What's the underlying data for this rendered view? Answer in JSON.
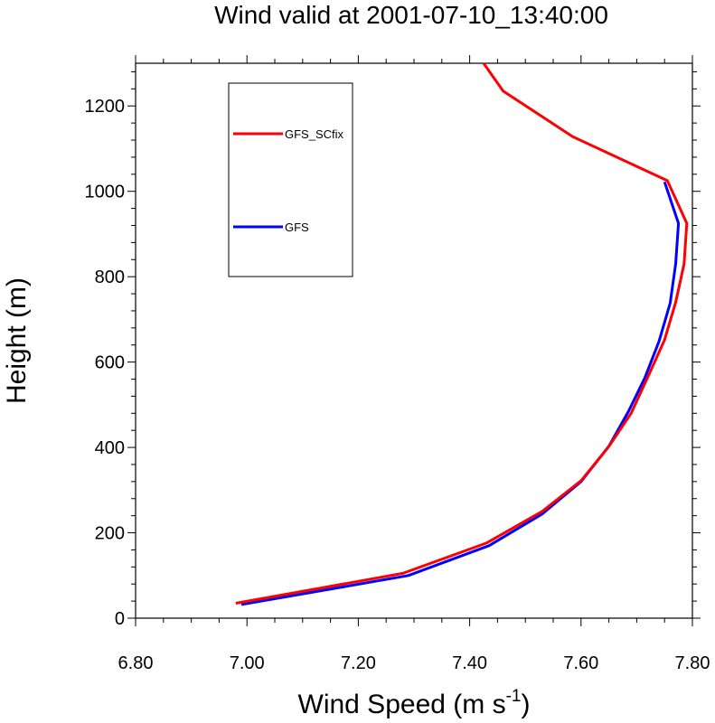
{
  "chart_data": {
    "type": "line",
    "title": "Wind valid at 2001-07-10_13:40:00",
    "xlabel": "Wind Speed (m s",
    "xlabel_sup": "-1",
    "xlabel_suffix": ")",
    "ylabel": "Height (m)",
    "xlim": [
      6.8,
      7.8
    ],
    "ylim": [
      0,
      1300
    ],
    "x_ticks": [
      6.8,
      7.0,
      7.2,
      7.4,
      7.6,
      7.8
    ],
    "x_tick_labels": [
      "6.80",
      "7.00",
      "7.20",
      "7.40",
      "7.60",
      "7.80"
    ],
    "y_ticks": [
      0,
      200,
      400,
      600,
      800,
      1000,
      1200
    ],
    "y_tick_labels": [
      "0",
      "200",
      "400",
      "600",
      "800",
      "1000",
      "1200"
    ],
    "grid": false,
    "legend_placement": "top-left (inside plot, boxed)",
    "series": [
      {
        "name": "GFS_SCfix",
        "color": "#ff0000",
        "points": [
          {
            "x": 6.98,
            "y": 35
          },
          {
            "x": 7.28,
            "y": 105
          },
          {
            "x": 7.43,
            "y": 176
          },
          {
            "x": 7.53,
            "y": 250
          },
          {
            "x": 7.6,
            "y": 322
          },
          {
            "x": 7.65,
            "y": 402
          },
          {
            "x": 7.69,
            "y": 480
          },
          {
            "x": 7.72,
            "y": 565
          },
          {
            "x": 7.75,
            "y": 652
          },
          {
            "x": 7.77,
            "y": 740
          },
          {
            "x": 7.785,
            "y": 830
          },
          {
            "x": 7.79,
            "y": 925
          },
          {
            "x": 7.755,
            "y": 1025
          },
          {
            "x": 7.585,
            "y": 1128
          },
          {
            "x": 7.46,
            "y": 1235
          },
          {
            "x": 7.425,
            "y": 1300
          }
        ]
      },
      {
        "name": "GFS",
        "color": "#0000ff",
        "points": [
          {
            "x": 6.99,
            "y": 32
          },
          {
            "x": 7.29,
            "y": 100
          },
          {
            "x": 7.435,
            "y": 170
          },
          {
            "x": 7.53,
            "y": 244
          },
          {
            "x": 7.6,
            "y": 320
          },
          {
            "x": 7.65,
            "y": 403
          },
          {
            "x": 7.685,
            "y": 484
          },
          {
            "x": 7.715,
            "y": 564
          },
          {
            "x": 7.74,
            "y": 648
          },
          {
            "x": 7.76,
            "y": 738
          },
          {
            "x": 7.77,
            "y": 830
          },
          {
            "x": 7.775,
            "y": 925
          },
          {
            "x": 7.75,
            "y": 1022
          }
        ]
      }
    ]
  }
}
